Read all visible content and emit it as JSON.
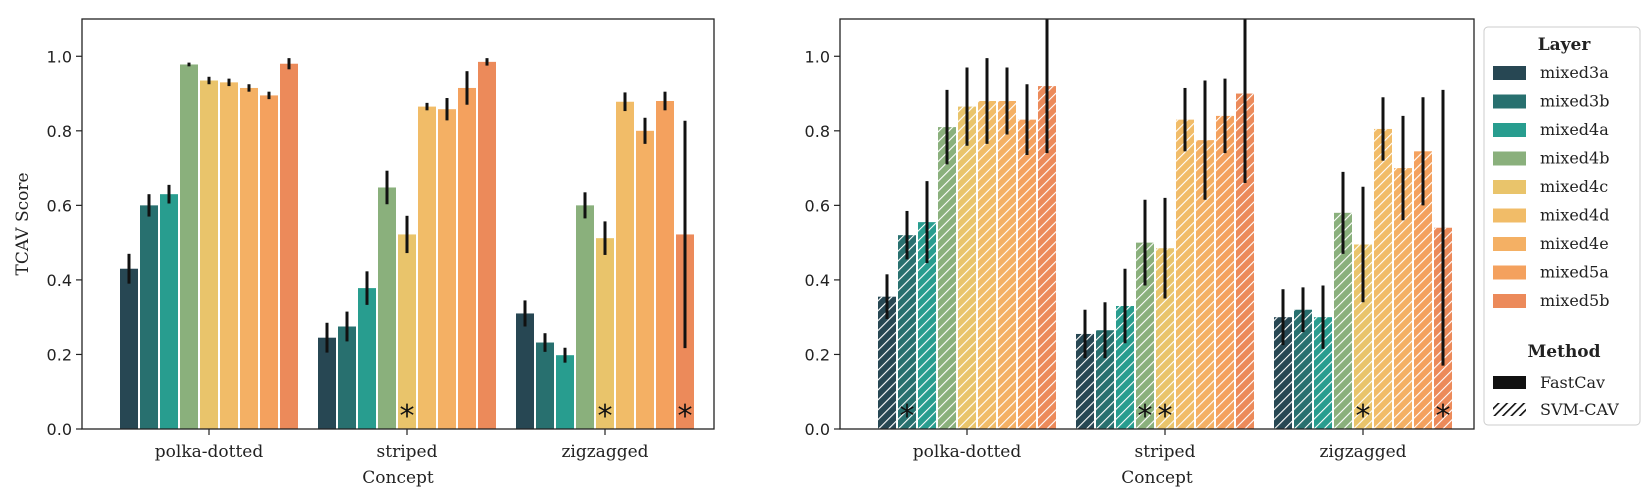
{
  "chart_data": [
    {
      "type": "bar",
      "method": "FastCav",
      "categories": [
        "polka-dotted",
        "striped",
        "zigzagged"
      ],
      "xlabel": "Concept",
      "ylabel": "TCAV Score",
      "ylim": [
        0,
        1.1
      ],
      "yticks": [
        "0.0",
        "0.2",
        "0.4",
        "0.6",
        "0.8",
        "1.0"
      ],
      "series": [
        {
          "name": "mixed3a",
          "values": [
            0.43,
            0.245,
            0.31
          ],
          "errors": [
            0.04,
            0.04,
            0.035
          ]
        },
        {
          "name": "mixed3b",
          "values": [
            0.6,
            0.275,
            0.232
          ],
          "errors": [
            0.03,
            0.04,
            0.025
          ]
        },
        {
          "name": "mixed4a",
          "values": [
            0.63,
            0.378,
            0.198
          ],
          "errors": [
            0.025,
            0.045,
            0.02
          ]
        },
        {
          "name": "mixed4b",
          "values": [
            0.978,
            0.648,
            0.6
          ],
          "errors": [
            0.005,
            0.045,
            0.035
          ]
        },
        {
          "name": "mixed4c",
          "values": [
            0.935,
            0.522,
            0.512
          ],
          "errors": [
            0.01,
            0.05,
            0.045
          ]
        },
        {
          "name": "mixed4d",
          "values": [
            0.93,
            0.865,
            0.878
          ],
          "errors": [
            0.01,
            0.01,
            0.025
          ]
        },
        {
          "name": "mixed4e",
          "values": [
            0.915,
            0.858,
            0.8
          ],
          "errors": [
            0.01,
            0.03,
            0.035
          ]
        },
        {
          "name": "mixed5a",
          "values": [
            0.895,
            0.915,
            0.88
          ],
          "errors": [
            0.01,
            0.045,
            0.025
          ]
        },
        {
          "name": "mixed5b",
          "values": [
            0.98,
            0.985,
            0.522
          ],
          "errors": [
            0.015,
            0.01,
            0.305
          ]
        }
      ],
      "stars": [
        {
          "category": "striped",
          "layer": "mixed4c"
        },
        {
          "category": "zigzagged",
          "layer": "mixed4c"
        },
        {
          "category": "zigzagged",
          "layer": "mixed5b"
        }
      ]
    },
    {
      "type": "bar",
      "method": "SVM-CAV",
      "categories": [
        "polka-dotted",
        "striped",
        "zigzagged"
      ],
      "xlabel": "Concept",
      "ylabel": "",
      "ylim": [
        0,
        1.1
      ],
      "yticks": [
        "0.0",
        "0.2",
        "0.4",
        "0.6",
        "0.8",
        "1.0"
      ],
      "series": [
        {
          "name": "mixed3a",
          "values": [
            0.355,
            0.255,
            0.3
          ],
          "errors": [
            0.06,
            0.065,
            0.075
          ]
        },
        {
          "name": "mixed3b",
          "values": [
            0.52,
            0.265,
            0.32
          ],
          "errors": [
            0.065,
            0.075,
            0.06
          ]
        },
        {
          "name": "mixed4a",
          "values": [
            0.555,
            0.33,
            0.3
          ],
          "errors": [
            0.11,
            0.1,
            0.085
          ]
        },
        {
          "name": "mixed4b",
          "values": [
            0.81,
            0.5,
            0.58
          ],
          "errors": [
            0.1,
            0.115,
            0.11
          ]
        },
        {
          "name": "mixed4c",
          "values": [
            0.865,
            0.485,
            0.495
          ],
          "errors": [
            0.105,
            0.135,
            0.155
          ]
        },
        {
          "name": "mixed4d",
          "values": [
            0.88,
            0.83,
            0.805
          ],
          "errors": [
            0.115,
            0.085,
            0.085
          ]
        },
        {
          "name": "mixed4e",
          "values": [
            0.88,
            0.775,
            0.7
          ],
          "errors": [
            0.09,
            0.16,
            0.14
          ]
        },
        {
          "name": "mixed5a",
          "values": [
            0.83,
            0.84,
            0.745
          ],
          "errors": [
            0.095,
            0.1,
            0.145
          ]
        },
        {
          "name": "mixed5b",
          "values": [
            0.92,
            0.9,
            0.54
          ],
          "errors": [
            0.18,
            0.24,
            0.37
          ]
        }
      ],
      "stars": [
        {
          "category": "polka-dotted",
          "layer": "mixed3b"
        },
        {
          "category": "striped",
          "layer": "mixed4b"
        },
        {
          "category": "striped",
          "layer": "mixed4c"
        },
        {
          "category": "zigzagged",
          "layer": "mixed4c"
        },
        {
          "category": "zigzagged",
          "layer": "mixed5b"
        }
      ]
    }
  ],
  "legend": {
    "layer_title": "Layer",
    "layers": [
      "mixed3a",
      "mixed3b",
      "mixed4a",
      "mixed4b",
      "mixed4c",
      "mixed4d",
      "mixed4e",
      "mixed5a",
      "mixed5b"
    ],
    "method_title": "Method",
    "methods": [
      "FastCav",
      "SVM-CAV"
    ]
  },
  "colors": {
    "mixed3a": "#274753",
    "mixed3b": "#28706f",
    "mixed4a": "#289d8f",
    "mixed4b": "#8ab07c",
    "mixed4c": "#e9c46b",
    "mixed4d": "#f1bc68",
    "mixed4e": "#f4b064",
    "mixed5a": "#f4a15e",
    "mixed5b": "#ec8a5a"
  },
  "star_symbol": "*"
}
